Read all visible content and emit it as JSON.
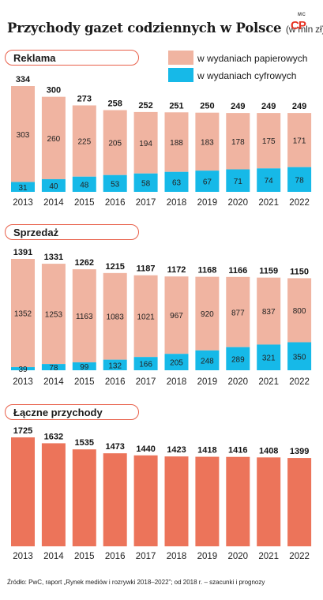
{
  "header": {
    "title": "Przychody gazet codziennych w Polsce",
    "unit": "(w mln zł)",
    "logo_top": "MC",
    "logo_main": "CP"
  },
  "legend": {
    "print": "w wydaniach papierowych",
    "digital": "w wydaniach cyfrowych"
  },
  "colors": {
    "print": "#f0b4a1",
    "digital": "#16b9e8",
    "total": "#ec745a",
    "accent": "#e8604a"
  },
  "source": "Źródło: PwC, raport „Rynek mediów i rozrywki 2018–2022”; od 2018 r. – szacunki i prognozy",
  "chart_data": [
    {
      "type": "bar",
      "title": "Reklama",
      "categories": [
        "2013",
        "2014",
        "2015",
        "2016",
        "2017",
        "2018",
        "2019",
        "2020",
        "2021",
        "2022"
      ],
      "totals": [
        334,
        300,
        273,
        258,
        252,
        251,
        250,
        249,
        249,
        249
      ],
      "series": [
        {
          "name": "w wydaniach papierowych",
          "values": [
            303,
            260,
            225,
            205,
            194,
            188,
            183,
            178,
            175,
            171
          ]
        },
        {
          "name": "w wydaniach cyfrowych",
          "values": [
            31,
            40,
            48,
            53,
            58,
            63,
            67,
            71,
            74,
            78
          ]
        }
      ],
      "stacked": true,
      "ylim": [
        0,
        334
      ]
    },
    {
      "type": "bar",
      "title": "Sprzedaż",
      "categories": [
        "2013",
        "2014",
        "2015",
        "2016",
        "2017",
        "2018",
        "2019",
        "2020",
        "2021",
        "2022"
      ],
      "totals": [
        1391,
        1331,
        1262,
        1215,
        1187,
        1172,
        1168,
        1166,
        1159,
        1150
      ],
      "series": [
        {
          "name": "w wydaniach papierowych",
          "values": [
            1352,
            1253,
            1163,
            1083,
            1021,
            967,
            920,
            877,
            837,
            800
          ]
        },
        {
          "name": "w wydaniach cyfrowych",
          "values": [
            39,
            78,
            99,
            132,
            166,
            205,
            248,
            289,
            321,
            350
          ]
        }
      ],
      "stacked": true,
      "ylim": [
        0,
        1391
      ]
    },
    {
      "type": "bar",
      "title": "Łączne przychody",
      "categories": [
        "2013",
        "2014",
        "2015",
        "2016",
        "2017",
        "2018",
        "2019",
        "2020",
        "2021",
        "2022"
      ],
      "values": [
        1725,
        1632,
        1535,
        1473,
        1440,
        1423,
        1418,
        1416,
        1408,
        1399
      ],
      "ylim": [
        0,
        1725
      ]
    }
  ]
}
